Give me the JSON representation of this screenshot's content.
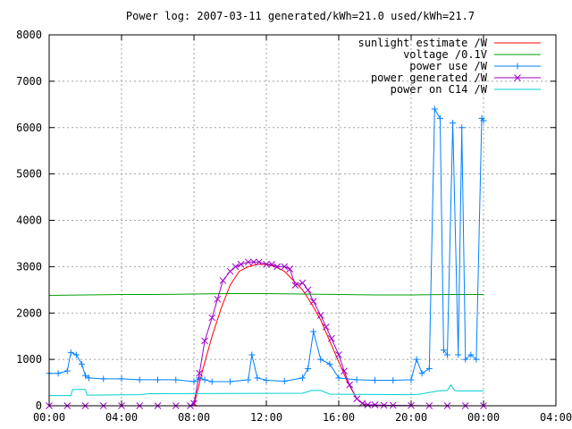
{
  "chart_data": {
    "type": "line",
    "title": "Power log: 2007-03-11 generated/kWh=21.0 used/kWh=21.7",
    "xlabel": "",
    "ylabel": "",
    "xlim": [
      0,
      28
    ],
    "ylim": [
      0,
      8000
    ],
    "grid": true,
    "legend_position": "top-right",
    "x_ticks": [
      "00:00",
      "04:00",
      "08:00",
      "12:00",
      "16:00",
      "20:00",
      "00:00",
      "04:00"
    ],
    "x_tick_values": [
      0,
      4,
      8,
      12,
      16,
      20,
      24,
      28
    ],
    "y_ticks": [
      "0",
      "1000",
      "2000",
      "3000",
      "4000",
      "5000",
      "6000",
      "7000",
      "8000"
    ],
    "y_tick_values": [
      0,
      1000,
      2000,
      3000,
      4000,
      5000,
      6000,
      7000,
      8000
    ],
    "series": [
      {
        "name": "sunlight estimate /W",
        "color": "#ff0000",
        "marker": "none",
        "x": [
          8.0,
          8.5,
          9.0,
          9.5,
          10.0,
          10.5,
          11.0,
          11.5,
          12.0,
          12.5,
          13.0,
          13.5,
          14.0,
          14.5,
          15.0,
          15.5,
          16.0,
          16.5,
          17.0,
          17.5
        ],
        "y": [
          0,
          800,
          1500,
          2100,
          2600,
          2900,
          3000,
          3050,
          3050,
          3000,
          2900,
          2700,
          2500,
          2200,
          1850,
          1400,
          950,
          500,
          150,
          0
        ]
      },
      {
        "name": "voltage /0.1V",
        "color": "#00a000",
        "marker": "none",
        "x": [
          0,
          2,
          4,
          6,
          8,
          10,
          12,
          14,
          16,
          18,
          20,
          22,
          24
        ],
        "y": [
          2380,
          2390,
          2400,
          2400,
          2410,
          2420,
          2420,
          2410,
          2400,
          2390,
          2390,
          2400,
          2400
        ]
      },
      {
        "name": "power use /W",
        "color": "#0080ff",
        "marker": "+",
        "x": [
          0,
          0.5,
          1.0,
          1.2,
          1.5,
          1.8,
          2.0,
          2.2,
          3.0,
          4.0,
          5.0,
          6.0,
          7.0,
          8.0,
          8.3,
          8.6,
          9.0,
          10.0,
          11.0,
          11.2,
          11.5,
          12.0,
          13.0,
          14.0,
          14.3,
          14.6,
          15.0,
          15.5,
          16.0,
          17.0,
          18.0,
          19.0,
          20.0,
          20.3,
          20.6,
          21.0,
          21.3,
          21.6,
          21.8,
          22.0,
          22.3,
          22.6,
          22.8,
          23.0,
          23.3,
          23.6,
          23.9,
          24.0
        ],
        "y": [
          700,
          700,
          750,
          1150,
          1100,
          900,
          650,
          600,
          580,
          580,
          560,
          560,
          560,
          520,
          600,
          560,
          520,
          520,
          560,
          1100,
          600,
          550,
          530,
          600,
          800,
          1600,
          1000,
          900,
          600,
          560,
          550,
          550,
          560,
          1000,
          700,
          800,
          6400,
          6200,
          1200,
          1100,
          6100,
          1100,
          6000,
          1000,
          1100,
          1000,
          6200,
          6150
        ]
      },
      {
        "name": "power generated /W",
        "color": "#a000c8",
        "marker": "x",
        "x": [
          0,
          1,
          2,
          3,
          4,
          5,
          6,
          7,
          7.8,
          8.0,
          8.3,
          8.6,
          9.0,
          9.3,
          9.6,
          10.0,
          10.3,
          10.6,
          11.0,
          11.3,
          11.6,
          12.0,
          12.3,
          12.6,
          13.0,
          13.3,
          13.6,
          14.0,
          14.3,
          14.6,
          15.0,
          15.3,
          15.6,
          16.0,
          16.3,
          16.6,
          17.0,
          17.3,
          17.6,
          18.0,
          18.5,
          19.0,
          20.0,
          21.0,
          22.0,
          23.0,
          24.0
        ],
        "y": [
          0,
          0,
          0,
          0,
          0,
          0,
          0,
          0,
          0,
          50,
          700,
          1400,
          1900,
          2300,
          2700,
          2900,
          3000,
          3050,
          3100,
          3100,
          3100,
          3050,
          3050,
          3000,
          3000,
          2950,
          2600,
          2650,
          2500,
          2250,
          1950,
          1700,
          1450,
          1100,
          750,
          450,
          150,
          50,
          20,
          20,
          10,
          10,
          5,
          0,
          0,
          0,
          0
        ]
      },
      {
        "name": "power on C14 /W",
        "color": "#00d0d0",
        "marker": "none",
        "x": [
          0,
          1.2,
          1.3,
          2.0,
          2.1,
          5.0,
          5.5,
          14.0,
          14.5,
          15.0,
          15.5,
          20.0,
          20.5,
          21.5,
          22.0,
          22.2,
          22.4,
          22.6,
          24.0
        ],
        "y": [
          220,
          220,
          350,
          350,
          230,
          240,
          260,
          270,
          330,
          330,
          250,
          240,
          250,
          320,
          330,
          450,
          330,
          320,
          320
        ]
      }
    ]
  }
}
